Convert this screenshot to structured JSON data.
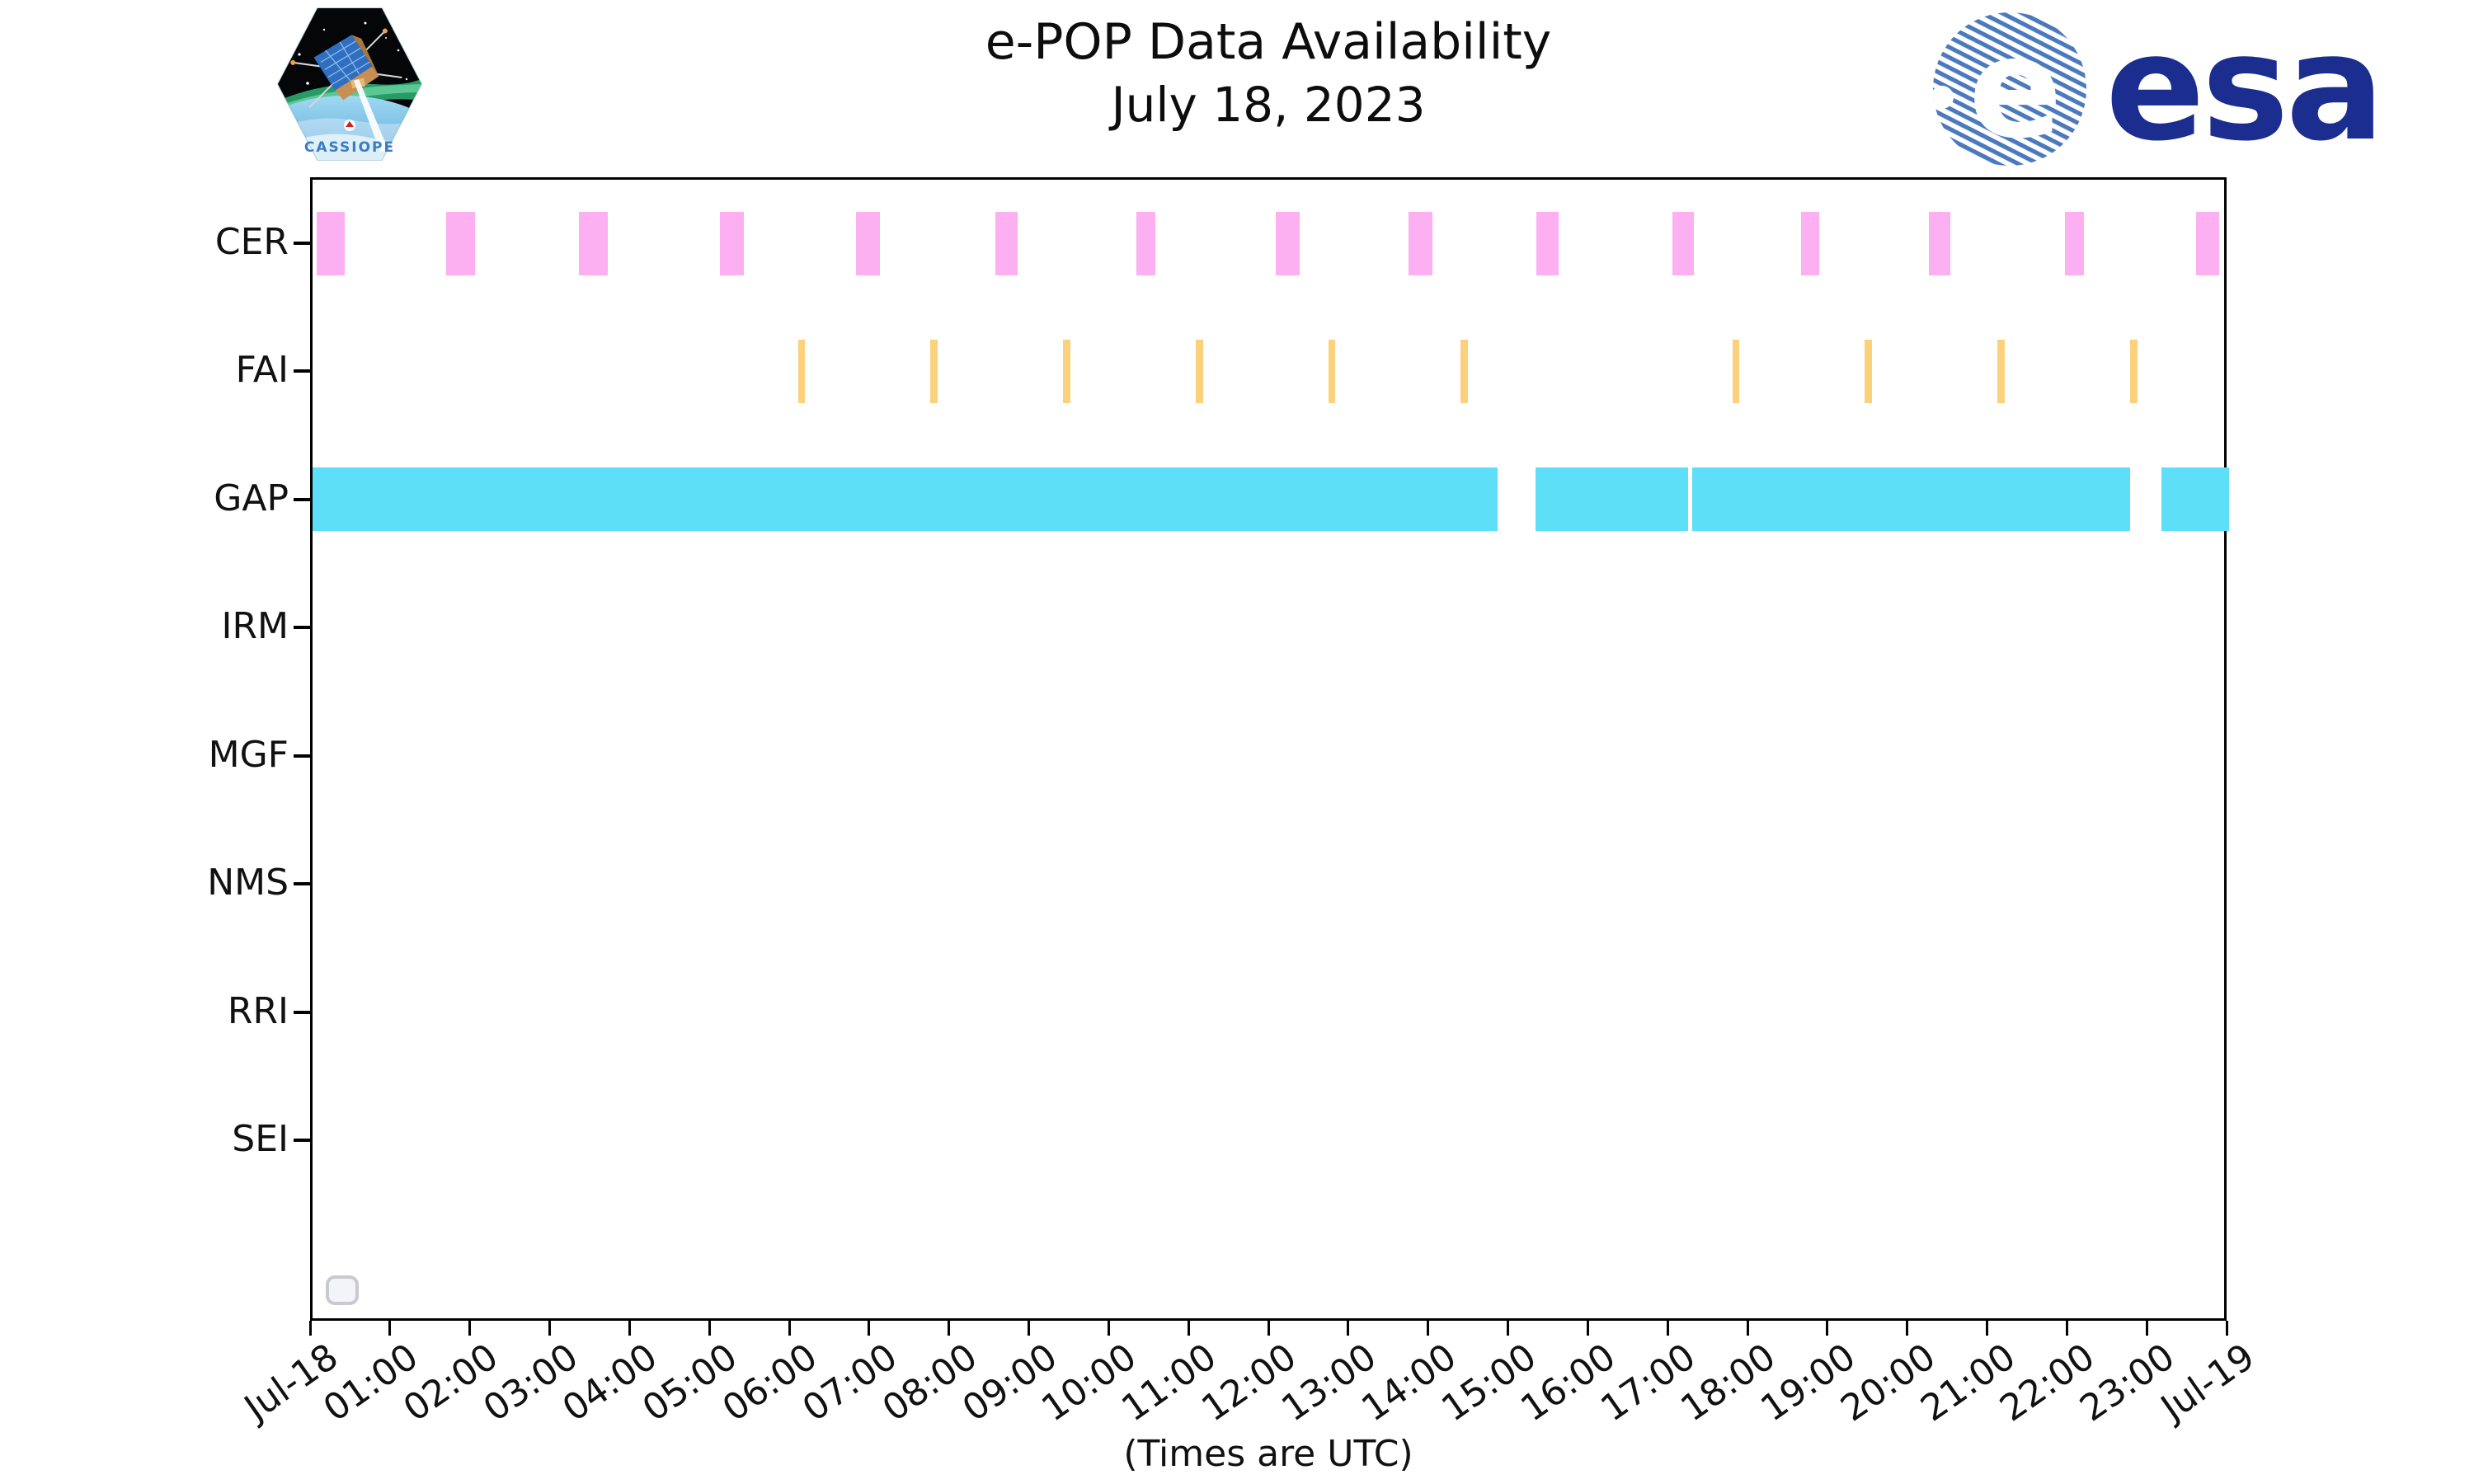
{
  "header": {
    "title_line1": "e-POP Data Availability",
    "title_line2": "July 18, 2023",
    "cassiope_patch_label": "CASSIOPE",
    "esa_wordmark": "esa"
  },
  "chart_data": {
    "type": "bar",
    "subtype": "timeline-availability (broken horizontal bars)",
    "title": "e-POP Data Availability",
    "subtitle": "July 18, 2023",
    "xlabel": "(Times are UTC)",
    "ylabel": "",
    "grid": false,
    "legend_position": "lower-left-empty-box",
    "x_axis": {
      "units": "hours UTC on 2023-07-18",
      "range_hours": [
        0,
        24
      ],
      "tick_interval_hours": 1,
      "tick_labels": [
        "Jul-18",
        "01:00",
        "02:00",
        "03:00",
        "04:00",
        "05:00",
        "06:00",
        "07:00",
        "08:00",
        "09:00",
        "10:00",
        "11:00",
        "12:00",
        "13:00",
        "14:00",
        "15:00",
        "16:00",
        "17:00",
        "18:00",
        "19:00",
        "20:00",
        "21:00",
        "22:00",
        "23:00",
        "Jul-19"
      ]
    },
    "rows": [
      "CER",
      "FAI",
      "GAP",
      "IRM",
      "MGF",
      "NMS",
      "RRI",
      "SEI"
    ],
    "series": [
      {
        "name": "CER",
        "color": "#fcaff1",
        "intervals": [
          [
            0.05,
            0.4
          ],
          [
            1.67,
            2.03
          ],
          [
            3.34,
            3.7
          ],
          [
            5.1,
            5.4
          ],
          [
            6.81,
            7.11
          ],
          [
            8.55,
            8.83
          ],
          [
            10.32,
            10.55
          ],
          [
            12.06,
            12.36
          ],
          [
            13.72,
            14.02
          ],
          [
            15.33,
            15.6
          ],
          [
            17.03,
            17.3
          ],
          [
            18.64,
            18.87
          ],
          [
            20.24,
            20.51
          ],
          [
            21.95,
            22.18
          ],
          [
            23.59,
            23.88
          ]
        ]
      },
      {
        "name": "FAI",
        "color": "#fcd17b",
        "intervals": [
          [
            6.08,
            6.17
          ],
          [
            7.74,
            7.83
          ],
          [
            9.4,
            9.49
          ],
          [
            11.06,
            11.15
          ],
          [
            12.72,
            12.81
          ],
          [
            14.38,
            14.47
          ],
          [
            17.78,
            17.87
          ],
          [
            19.44,
            19.53
          ],
          [
            21.1,
            21.19
          ],
          [
            22.76,
            22.85
          ]
        ]
      },
      {
        "name": "GAP",
        "color": "#5ddff7",
        "intervals": [
          [
            0.0,
            14.84
          ],
          [
            15.31,
            17.23
          ],
          [
            17.28,
            22.76
          ],
          [
            23.15,
            24.0
          ]
        ]
      },
      {
        "name": "IRM",
        "color": null,
        "intervals": []
      },
      {
        "name": "MGF",
        "color": null,
        "intervals": []
      },
      {
        "name": "NMS",
        "color": null,
        "intervals": []
      },
      {
        "name": "RRI",
        "color": null,
        "intervals": []
      },
      {
        "name": "SEI",
        "color": null,
        "intervals": []
      }
    ]
  },
  "colors": {
    "cer_bar": "#fcaff1",
    "fai_bar": "#fcd17b",
    "gap_bar": "#5ddff7",
    "axis": "#000000",
    "esa_blue": "#1b2d8f",
    "esa_globe_stripe": "#4b79bd",
    "cassiope_text": "#3a7cc4"
  }
}
